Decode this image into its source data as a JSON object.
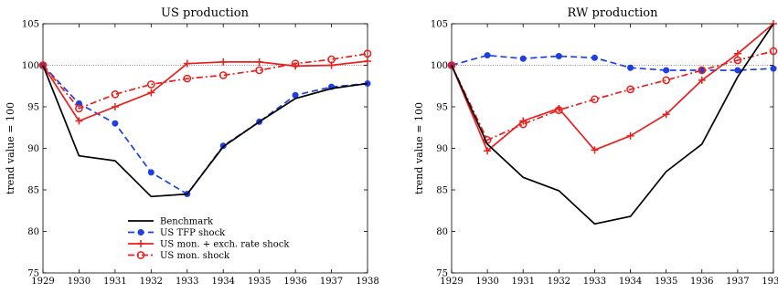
{
  "colors": {
    "benchmark": "#000000",
    "tfp": "#1f3fe0",
    "mon_exch": "#e8201e",
    "mon": "#e8201e",
    "reference": "#666666"
  },
  "chart_data": [
    {
      "type": "line",
      "title": "US production",
      "xlabel": "",
      "ylabel": "trend value = 100",
      "xlim": [
        1929,
        1938
      ],
      "ylim": [
        75,
        105
      ],
      "xticks": [
        "1929",
        "1930",
        "1931",
        "1932",
        "1933",
        "1934",
        "1935",
        "1936",
        "1937",
        "1938"
      ],
      "yticks": [
        "75",
        "80",
        "85",
        "90",
        "95",
        "100",
        "105"
      ],
      "reference_line": 100,
      "legend": "lower-center",
      "x": [
        1929,
        1930,
        1931,
        1932,
        1933,
        1934,
        1935,
        1936,
        1937,
        1938
      ],
      "series": [
        {
          "name": "Benchmark",
          "style": "solid",
          "marker": "none",
          "color_key": "benchmark",
          "values": [
            100,
            89.1,
            88.5,
            84.2,
            84.5,
            90.2,
            93.2,
            96.0,
            97.2,
            97.8
          ]
        },
        {
          "name": "US TFP shock",
          "style": "dashed",
          "marker": "dot",
          "color_key": "tfp",
          "values": [
            100,
            95.4,
            93.0,
            87.1,
            84.5,
            90.3,
            93.2,
            96.4,
            97.4,
            97.8
          ]
        },
        {
          "name": "US mon. + exch. rate shock",
          "style": "solid",
          "marker": "plus",
          "color_key": "mon_exch",
          "values": [
            100,
            93.3,
            95.0,
            96.7,
            100.2,
            100.4,
            100.4,
            99.9,
            100.0,
            100.5
          ]
        },
        {
          "name": "US mon. shock",
          "style": "dashdot",
          "marker": "circle",
          "color_key": "mon",
          "values": [
            100,
            94.8,
            96.5,
            97.7,
            98.4,
            98.8,
            99.4,
            100.2,
            100.7,
            101.4
          ]
        }
      ]
    },
    {
      "type": "line",
      "title": "RW production",
      "xlabel": "",
      "ylabel": "trend value = 100",
      "xlim": [
        1929,
        1938
      ],
      "ylim": [
        75,
        105
      ],
      "xticks": [
        "1929",
        "1930",
        "1931",
        "1932",
        "1933",
        "1934",
        "1935",
        "1936",
        "1937",
        "1938"
      ],
      "yticks": [
        "75",
        "80",
        "85",
        "90",
        "95",
        "100",
        "105"
      ],
      "reference_line": 100,
      "x": [
        1929,
        1930,
        1931,
        1932,
        1933,
        1934,
        1935,
        1936,
        1937,
        1938
      ],
      "series": [
        {
          "name": "Benchmark",
          "style": "solid",
          "marker": "none",
          "color_key": "benchmark",
          "values": [
            100,
            90.5,
            86.5,
            84.9,
            80.9,
            81.8,
            87.2,
            90.5,
            98.6,
            105.0
          ]
        },
        {
          "name": "US TFP shock",
          "style": "dashed",
          "marker": "dot",
          "color_key": "tfp",
          "values": [
            100,
            101.2,
            100.8,
            101.1,
            100.9,
            99.7,
            99.4,
            99.4,
            99.4,
            99.6
          ]
        },
        {
          "name": "US mon. + exch. rate shock",
          "style": "solid",
          "marker": "plus",
          "color_key": "mon_exch",
          "values": [
            100,
            89.7,
            93.3,
            94.8,
            89.8,
            91.5,
            94.1,
            98.2,
            101.4,
            105.0
          ]
        },
        {
          "name": "US mon. shock",
          "style": "dashdot",
          "marker": "circle",
          "color_key": "mon",
          "values": [
            100,
            91.0,
            92.9,
            94.6,
            95.9,
            97.1,
            98.2,
            99.4,
            100.6,
            101.7
          ]
        }
      ]
    }
  ]
}
